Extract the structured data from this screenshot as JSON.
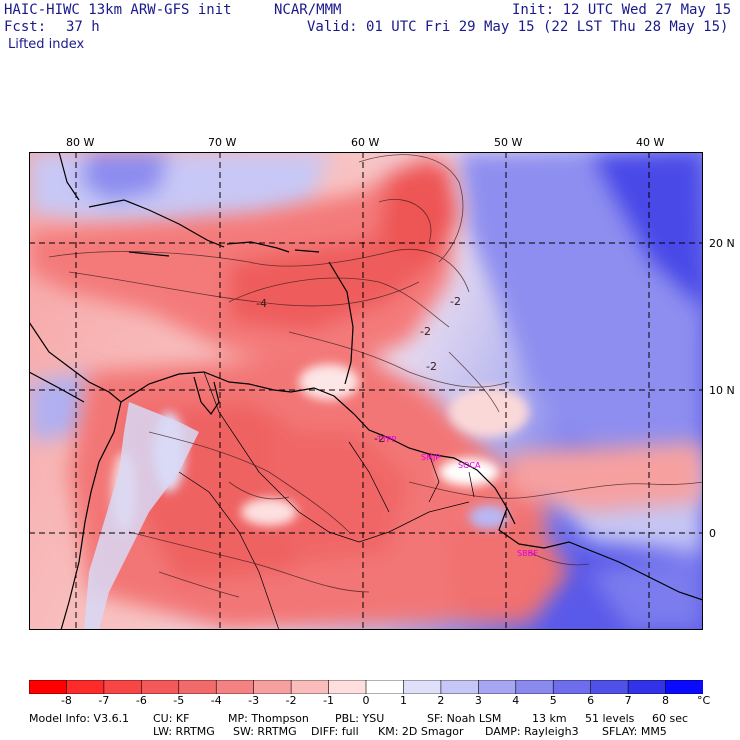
{
  "header": {
    "model": "HAIC-HIWC 13km ARW-GFS init",
    "org": "NCAR/MMM",
    "init": "Init: 12 UTC Wed 27 May 15",
    "fcst_label": "Fcst:",
    "fcst_value": "37 h",
    "valid": "Valid: 01 UTC Fri 29 May 15 (22 LST Thu 28 May 15)",
    "field": "Lifted index"
  },
  "map": {
    "lon_labels": [
      "80 W",
      "70 W",
      "60 W",
      "50 W",
      "40 W"
    ],
    "lat_labels": [
      "20 N",
      "10 N",
      "0"
    ],
    "stations": [
      "TTPP",
      "SMJP",
      "SOCA",
      "SBBE"
    ],
    "contour_labels": [
      "-4",
      "-2",
      "-2",
      "-2",
      "-2"
    ],
    "colors": {
      "coast": "#000000",
      "grid": "#000000",
      "station": "#e000e0"
    }
  },
  "colorbar": {
    "ticks": [
      "-8",
      "-7",
      "-6",
      "-5",
      "-4",
      "-3",
      "-2",
      "-1",
      "0",
      "1",
      "2",
      "3",
      "4",
      "5",
      "6",
      "7",
      "8"
    ],
    "unit": "°C",
    "colors": [
      "#ff0000",
      "#ff2a2a",
      "#f84545",
      "#f45858",
      "#f26a6a",
      "#f48282",
      "#f7a0a0",
      "#fbbcbc",
      "#ffdede",
      "#ffffff",
      "#e0e0fb",
      "#c6c6f7",
      "#a6a6f2",
      "#8a8aee",
      "#6e6eec",
      "#5050ea",
      "#3232e8",
      "#0a0aff"
    ]
  },
  "footer": {
    "line1": [
      "Model Info: V3.6.1",
      "CU: KF",
      "MP: Thompson",
      "PBL: YSU",
      "SF: Noah LSM",
      "13 km",
      "51 levels",
      "60 sec"
    ],
    "line2": [
      "LW: RRTMG",
      "SW: RRTMG",
      "DIFF: full",
      "KM: 2D Smagor",
      "DAMP: Rayleigh3",
      "SFLAY: MM5"
    ]
  }
}
